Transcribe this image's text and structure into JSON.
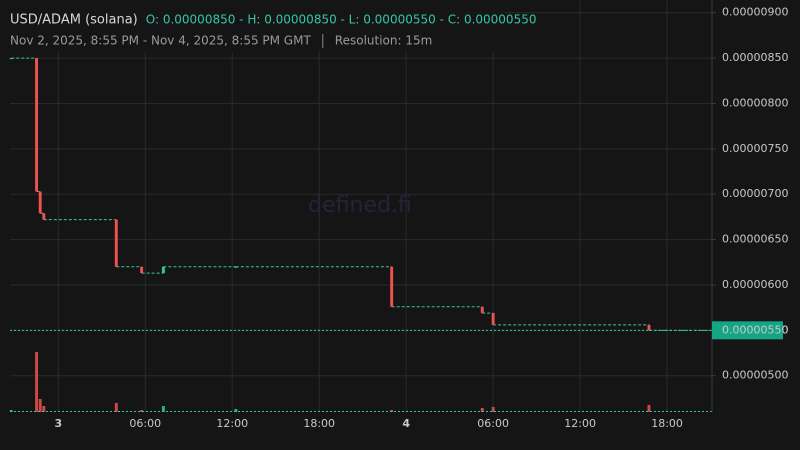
{
  "chart_data": {
    "type": "candlestick",
    "title": "USD/ADAM (solana)",
    "ohlc_text": "O: 0.00000850 - H: 0.00000850 - L: 0.00000550 - C: 0.00000550",
    "date_range": "Nov 2, 2025, 8:55 PM - Nov 4, 2025, 8:55 PM GMT",
    "resolution": "Resolution: 15m",
    "watermark": "defined.fi",
    "x": [
      "2025-11-02T20:45",
      "2025-11-02T22:30",
      "2025-11-02T22:45",
      "2025-11-02T23:00",
      "2025-11-03T04:00",
      "2025-11-03T05:45",
      "2025-11-03T07:15",
      "2025-11-03T12:15",
      "2025-11-03T23:00",
      "2025-11-04T05:15",
      "2025-11-04T06:00",
      "2025-11-04T16:45"
    ],
    "open": [
      8.5e-06,
      8.5e-06,
      7.03e-06,
      6.79e-06,
      6.72e-06,
      6.2e-06,
      6.13e-06,
      6.2e-06,
      6.2e-06,
      5.76e-06,
      5.69e-06,
      5.56e-06
    ],
    "high": [
      8.5e-06,
      8.5e-06,
      7.03e-06,
      6.79e-06,
      6.72e-06,
      6.2e-06,
      6.2e-06,
      6.2e-06,
      6.2e-06,
      5.76e-06,
      5.69e-06,
      5.56e-06
    ],
    "low": [
      8.5e-06,
      7.03e-06,
      6.79e-06,
      6.72e-06,
      6.2e-06,
      6.13e-06,
      6.13e-06,
      6.2e-06,
      5.76e-06,
      5.69e-06,
      5.56e-06,
      5.5e-06
    ],
    "close": [
      8.5e-06,
      7.03e-06,
      6.79e-06,
      6.72e-06,
      6.2e-06,
      6.13e-06,
      6.2e-06,
      6.2e-06,
      5.76e-06,
      5.69e-06,
      5.56e-06,
      5.5e-06
    ],
    "volume": [
      2,
      60,
      13,
      6,
      9,
      2,
      6,
      3,
      2,
      4,
      5,
      7
    ],
    "up_color": "#35c6a6",
    "down_color": "#ef5350",
    "xlim": [
      "2025-11-02T20:40",
      "2025-11-04T21:06"
    ],
    "xticks": [
      {
        "value": "2025-11-03T00:00",
        "label": "3"
      },
      {
        "value": "2025-11-03T06:00",
        "label": "06:00"
      },
      {
        "value": "2025-11-03T12:00",
        "label": "12:00"
      },
      {
        "value": "2025-11-03T18:00",
        "label": "18:00"
      },
      {
        "value": "2025-11-04T00:00",
        "label": "4"
      },
      {
        "value": "2025-11-04T06:00",
        "label": "06:00"
      },
      {
        "value": "2025-11-04T12:00",
        "label": "12:00"
      },
      {
        "value": "2025-11-04T18:00",
        "label": "18:00"
      }
    ],
    "ylim": [
      4.6e-06,
      9.14e-06
    ],
    "yticks": [
      {
        "value": 5e-06,
        "label": "0.00000500"
      },
      {
        "value": 5.5e-06,
        "label": "0.00000550"
      },
      {
        "value": 6e-06,
        "label": "0.00000600"
      },
      {
        "value": 6.5e-06,
        "label": "0.00000650"
      },
      {
        "value": 7e-06,
        "label": "0.00000700"
      },
      {
        "value": 7.5e-06,
        "label": "0.00000750"
      },
      {
        "value": 8e-06,
        "label": "0.00000800"
      },
      {
        "value": 8.5e-06,
        "label": "0.00000850"
      },
      {
        "value": 9e-06,
        "label": "0.00000900"
      }
    ],
    "last_price": {
      "value": 5.5e-06,
      "label": "0.00000550"
    },
    "grid": true
  }
}
